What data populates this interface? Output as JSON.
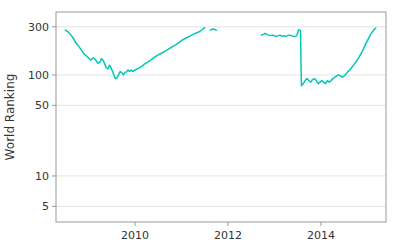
{
  "chart_data": {
    "type": "line",
    "ylabel": "World Ranking",
    "log": "y",
    "grid": true,
    "xlim": [
      2008.3,
      2015.4
    ],
    "xticks": [
      2010,
      2012,
      2014
    ],
    "ylim": [
      3.5,
      420
    ],
    "yticks": [
      5,
      10,
      50,
      100,
      300
    ],
    "x": [
      2008.5,
      2008.57,
      2008.63,
      2008.68,
      2008.72,
      2008.78,
      2008.85,
      2008.9,
      2008.95,
      2009.0,
      2009.05,
      2009.1,
      2009.15,
      2009.2,
      2009.25,
      2009.28,
      2009.32,
      2009.35,
      2009.38,
      2009.42,
      2009.45,
      2009.48,
      2009.52,
      2009.55,
      2009.58,
      2009.62,
      2009.65,
      2009.68,
      2009.72,
      2009.75,
      2009.78,
      2009.82,
      2009.85,
      2009.88,
      2009.92,
      2009.95,
      2010.0,
      2010.05,
      2010.1,
      2010.15,
      2010.2,
      2010.28,
      2010.35,
      2010.42,
      2010.5,
      2010.58,
      2010.65,
      2010.72,
      2010.8,
      2010.88,
      2010.95,
      2011.02,
      2011.1,
      2011.18,
      2011.25,
      2011.32,
      2011.38,
      2011.42,
      2011.45,
      2011.48,
      2011.5,
      null,
      2011.62,
      2011.65,
      2011.68,
      2011.72,
      2011.75,
      null,
      2012.72,
      2012.76,
      2012.8,
      2012.84,
      2012.88,
      2012.92,
      2012.96,
      2013.0,
      2013.04,
      2013.08,
      2013.12,
      2013.16,
      2013.2,
      2013.24,
      2013.28,
      2013.32,
      2013.36,
      2013.4,
      2013.44,
      2013.48,
      2013.52,
      2013.54,
      2013.56,
      2013.58,
      2013.62,
      2013.66,
      2013.7,
      2013.74,
      2013.78,
      2013.82,
      2013.86,
      2013.9,
      2013.94,
      2013.98,
      2014.02,
      2014.06,
      2014.1,
      2014.14,
      2014.18,
      2014.22,
      2014.26,
      2014.3,
      2014.34,
      2014.38,
      2014.42,
      2014.46,
      2014.5,
      2014.54,
      2014.58,
      2014.62,
      2014.66,
      2014.7,
      2014.74,
      2014.78,
      2014.82,
      2014.86,
      2014.9,
      2014.94,
      2014.98,
      2015.02,
      2015.06,
      2015.1,
      2015.14,
      2015.18
    ],
    "series": [
      {
        "color": "#00c8b8",
        "values": [
          278,
          265,
          245,
          228,
          210,
          195,
          175,
          162,
          155,
          148,
          140,
          148,
          142,
          130,
          135,
          145,
          138,
          128,
          118,
          115,
          125,
          118,
          108,
          98,
          92,
          95,
          102,
          108,
          105,
          100,
          105,
          108,
          112,
          108,
          112,
          108,
          112,
          115,
          118,
          122,
          128,
          135,
          142,
          150,
          158,
          165,
          172,
          180,
          190,
          200,
          210,
          222,
          232,
          242,
          252,
          260,
          268,
          275,
          282,
          290,
          293,
          null,
          278,
          282,
          285,
          282,
          278,
          null,
          248,
          252,
          258,
          252,
          248,
          245,
          248,
          245,
          240,
          245,
          248,
          242,
          245,
          240,
          245,
          248,
          245,
          242,
          240,
          245,
          280,
          278,
          275,
          78,
          82,
          88,
          92,
          88,
          85,
          90,
          92,
          88,
          82,
          85,
          88,
          85,
          82,
          88,
          85,
          88,
          92,
          95,
          98,
          100,
          98,
          95,
          98,
          102,
          108,
          112,
          118,
          125,
          132,
          140,
          150,
          162,
          175,
          192,
          210,
          228,
          248,
          265,
          280,
          292
        ]
      }
    ]
  }
}
